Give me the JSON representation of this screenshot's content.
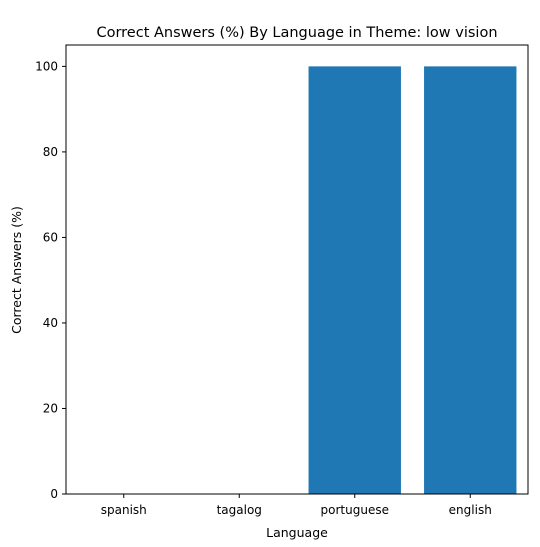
{
  "chart_data": {
    "type": "bar",
    "title": "Correct Answers (%) By Language in Theme: low vision",
    "xlabel": "Language",
    "ylabel": "Correct Answers (%)",
    "categories": [
      "spanish",
      "tagalog",
      "portuguese",
      "english"
    ],
    "values": [
      0,
      0,
      100,
      100
    ],
    "ylim": [
      0,
      105
    ],
    "yticks": [
      0,
      20,
      40,
      60,
      80,
      100
    ],
    "bar_color": "#1f77b4",
    "grid": false,
    "legend": "none"
  }
}
